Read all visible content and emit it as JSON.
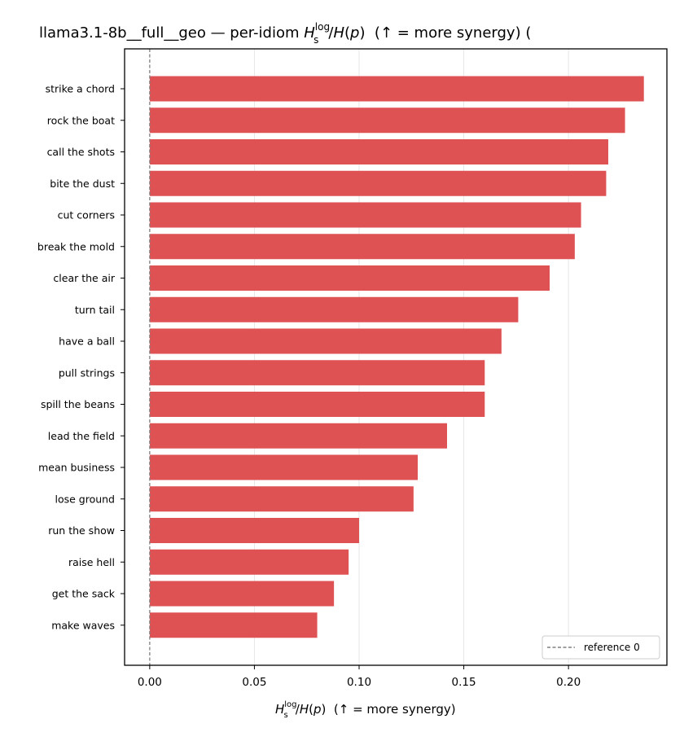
{
  "chart_data": {
    "type": "bar",
    "orientation": "horizontal",
    "title_parts": {
      "prefix": "llama3.1-8b__full__geo — per-idiom ",
      "H": "H",
      "sup": "log",
      "sub": "s",
      "mid": "/",
      "Hp": "H",
      "paren_open": "(",
      "p": "p",
      "paren_close": ")",
      "suffix": "  (↑ = more synergy) ("
    },
    "xlabel_parts": {
      "H": "H",
      "sup": "log",
      "sub": "s",
      "mid": "/",
      "Hp": "H",
      "paren_open": "(",
      "p": "p",
      "paren_close": ")",
      "suffix": "  (↑ = more synergy)"
    },
    "categories": [
      "strike a chord",
      "rock the boat",
      "call the shots",
      "bite the dust",
      "cut corners",
      "break the mold",
      "clear the air",
      "turn tail",
      "have a ball",
      "pull strings",
      "spill the beans",
      "lead the field",
      "mean business",
      "lose ground",
      "run the show",
      "raise hell",
      "get the sack",
      "make waves"
    ],
    "values": [
      0.236,
      0.227,
      0.219,
      0.218,
      0.206,
      0.203,
      0.191,
      0.176,
      0.168,
      0.16,
      0.16,
      0.142,
      0.128,
      0.126,
      0.1,
      0.095,
      0.088,
      0.08
    ],
    "xlim": [
      -0.012,
      0.247
    ],
    "xticks": [
      0.0,
      0.05,
      0.1,
      0.15,
      0.2
    ],
    "xtick_labels": [
      "0.00",
      "0.05",
      "0.10",
      "0.15",
      "0.20"
    ],
    "reference_line": {
      "x": 0,
      "label": "reference 0"
    },
    "legend_position": "lower-right",
    "grid": "vertical",
    "bar_color": "#df5254"
  }
}
